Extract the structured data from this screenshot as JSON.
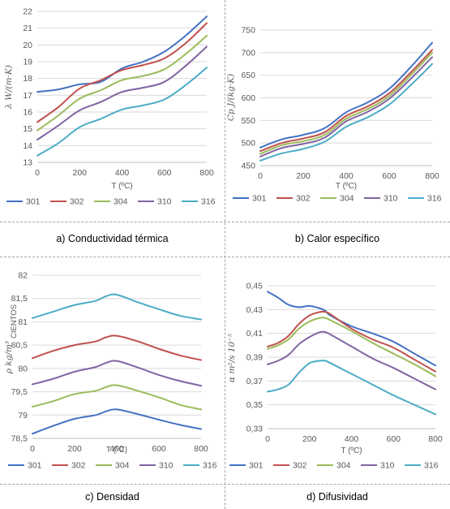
{
  "legend_colors": {
    "301": "#4472c4",
    "302": "#c0504d",
    "304": "#9bbb59",
    "310": "#8064a2",
    "316": "#4bacc6"
  },
  "chart_data": [
    {
      "type": "line",
      "caption": "a) Conductividad térmica",
      "xlabel": "T (ºC)",
      "ylabel": "λ  W/(m·K)",
      "x": [
        0,
        100,
        200,
        300,
        400,
        500,
        600,
        700,
        800
      ],
      "xticks": [
        "0",
        "200",
        "400",
        "600",
        "800"
      ],
      "xlim": [
        0,
        800
      ],
      "ylim": [
        13,
        22
      ],
      "yticks": [
        "13",
        "14",
        "15",
        "16",
        "17",
        "18",
        "19",
        "20",
        "21",
        "22"
      ],
      "series": [
        {
          "name": "301",
          "values": [
            17.2,
            17.35,
            17.65,
            17.8,
            18.6,
            19.0,
            19.6,
            20.55,
            21.7
          ]
        },
        {
          "name": "302",
          "values": [
            15.4,
            16.3,
            17.4,
            17.9,
            18.5,
            18.8,
            19.2,
            20.1,
            21.3
          ]
        },
        {
          "name": "304",
          "values": [
            14.9,
            15.8,
            16.8,
            17.3,
            17.9,
            18.15,
            18.55,
            19.45,
            20.55
          ]
        },
        {
          "name": "310",
          "values": [
            14.35,
            15.2,
            16.1,
            16.6,
            17.2,
            17.45,
            17.8,
            18.75,
            19.9
          ]
        },
        {
          "name": "316",
          "values": [
            13.4,
            14.15,
            15.1,
            15.6,
            16.15,
            16.4,
            16.75,
            17.6,
            18.65
          ]
        }
      ]
    },
    {
      "type": "line",
      "caption": "b) Calor específico",
      "xlabel": "T (ºC)",
      "ylabel": "Cp  J/(kg·K)",
      "x": [
        0,
        100,
        200,
        300,
        400,
        500,
        600,
        700,
        800
      ],
      "xticks": [
        "0",
        "200",
        "400",
        "600",
        "800"
      ],
      "xlim": [
        0,
        800
      ],
      "ylim": [
        450,
        750
      ],
      "yticks": [
        "450",
        "500",
        "550",
        "600",
        "650",
        "700",
        "750"
      ],
      "series": [
        {
          "name": "301",
          "values": [
            490,
            508,
            518,
            533,
            568,
            590,
            620,
            668,
            722
          ]
        },
        {
          "name": "302",
          "values": [
            482,
            500,
            510,
            524,
            560,
            581,
            610,
            656,
            706
          ]
        },
        {
          "name": "304",
          "values": [
            476,
            495,
            504,
            518,
            554,
            575,
            604,
            650,
            700
          ]
        },
        {
          "name": "310",
          "values": [
            470,
            489,
            498,
            512,
            548,
            569,
            598,
            642,
            690
          ]
        },
        {
          "name": "316",
          "values": [
            461,
            477,
            487,
            503,
            536,
            557,
            585,
            628,
            675
          ]
        }
      ]
    },
    {
      "type": "line",
      "caption": "c) Densidad",
      "xlabel": "T (ºC)",
      "ylabel": "ρ  kg/m³",
      "units_label": "CIENTOS",
      "x": [
        0,
        100,
        200,
        300,
        350,
        400,
        500,
        600,
        700,
        800
      ],
      "xticks": [
        "0",
        "200",
        "400",
        "600",
        "800"
      ],
      "xlim": [
        0,
        800
      ],
      "ylim": [
        78.5,
        82
      ],
      "yticks": [
        "78,5",
        "79",
        "79,5",
        "80",
        "80,5",
        "81",
        "81,5",
        "82"
      ],
      "series": [
        {
          "name": "301",
          "values": [
            78.6,
            78.77,
            78.92,
            79.0,
            79.08,
            79.12,
            79.02,
            78.9,
            78.79,
            78.7
          ]
        },
        {
          "name": "302",
          "values": [
            80.22,
            80.38,
            80.5,
            80.58,
            80.67,
            80.7,
            80.58,
            80.42,
            80.28,
            80.18
          ]
        },
        {
          "name": "304",
          "values": [
            79.18,
            79.3,
            79.45,
            79.52,
            79.6,
            79.64,
            79.52,
            79.38,
            79.22,
            79.12
          ]
        },
        {
          "name": "310",
          "values": [
            79.66,
            79.78,
            79.93,
            80.03,
            80.12,
            80.16,
            80.02,
            79.86,
            79.73,
            79.63
          ]
        },
        {
          "name": "316",
          "values": [
            81.08,
            81.22,
            81.36,
            81.45,
            81.55,
            81.58,
            81.42,
            81.27,
            81.13,
            81.05
          ]
        }
      ]
    },
    {
      "type": "line",
      "caption": "d) Difusividad",
      "xlabel": "T (ºC)",
      "ylabel": "α  m²/s 10⁻⁵",
      "x": [
        0,
        50,
        100,
        150,
        200,
        250,
        275,
        300,
        400,
        500,
        600,
        700,
        800
      ],
      "xticks": [
        "0",
        "200",
        "400",
        "600",
        "800"
      ],
      "xlim": [
        0,
        800
      ],
      "ylim": [
        0.33,
        0.45
      ],
      "yticks": [
        "0,33",
        "0,35",
        "0,37",
        "0,39",
        "0,41",
        "0,43",
        "0,45"
      ],
      "series": [
        {
          "name": "301",
          "values": [
            0.445,
            0.44,
            0.434,
            0.432,
            0.433,
            0.431,
            0.429,
            0.425,
            0.416,
            0.41,
            0.403,
            0.393,
            0.383
          ]
        },
        {
          "name": "302",
          "values": [
            0.399,
            0.402,
            0.408,
            0.418,
            0.425,
            0.428,
            0.428,
            0.426,
            0.414,
            0.405,
            0.398,
            0.388,
            0.378
          ]
        },
        {
          "name": "304",
          "values": [
            0.397,
            0.4,
            0.405,
            0.414,
            0.42,
            0.423,
            0.423,
            0.421,
            0.412,
            0.402,
            0.393,
            0.384,
            0.374
          ]
        },
        {
          "name": "310",
          "values": [
            0.384,
            0.387,
            0.392,
            0.401,
            0.407,
            0.411,
            0.411,
            0.409,
            0.399,
            0.389,
            0.381,
            0.372,
            0.363
          ]
        },
        {
          "name": "316",
          "values": [
            0.361,
            0.363,
            0.367,
            0.377,
            0.385,
            0.387,
            0.387,
            0.385,
            0.376,
            0.367,
            0.358,
            0.35,
            0.342
          ]
        }
      ]
    }
  ]
}
